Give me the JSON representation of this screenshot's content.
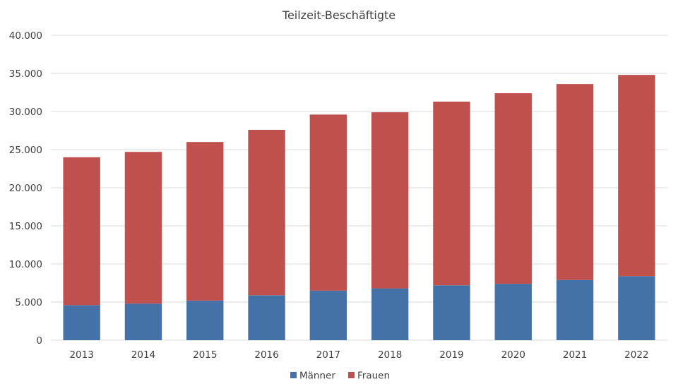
{
  "chart_data": {
    "type": "bar",
    "stacked": true,
    "title": "Teilzeit-Beschäftigte",
    "xlabel": "",
    "ylabel": "",
    "categories": [
      "2013",
      "2014",
      "2015",
      "2016",
      "2017",
      "2018",
      "2019",
      "2020",
      "2021",
      "2022"
    ],
    "series": [
      {
        "name": "Männer",
        "color": "#4472a8",
        "values": [
          4600,
          4800,
          5200,
          5900,
          6500,
          6800,
          7200,
          7400,
          7900,
          8400
        ]
      },
      {
        "name": "Frauen",
        "color": "#c0504d",
        "values": [
          19400,
          19900,
          20800,
          21700,
          23100,
          23100,
          24100,
          25000,
          25700,
          26400
        ]
      }
    ],
    "ylim": [
      0,
      40000
    ],
    "yticks": [
      "0",
      "5.000",
      "10.000",
      "15.000",
      "20.000",
      "25.000",
      "30.000",
      "35.000",
      "40.000"
    ],
    "grid": true,
    "legend_position": "bottom"
  }
}
